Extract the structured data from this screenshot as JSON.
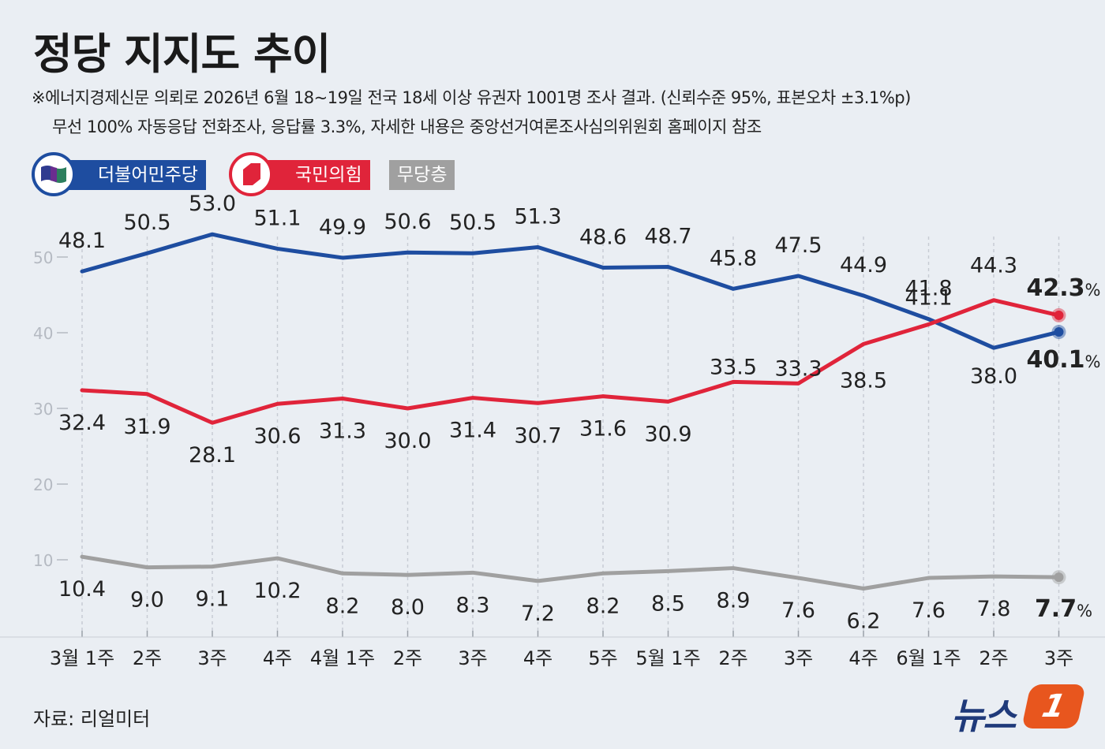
{
  "title": "정당 지지도 추이",
  "notes": [
    "※에너지경제신문 의뢰로 2026년 6월 18~19일 전국 18세 이상 유권자 1001명 조사 결과. (신뢰수준 95%, 표본오차 ±3.1%p)",
    "무선 100% 자동응답 전화조사, 응답률 3.3%, 자세한 내용은 중앙선거여론조사심의위원회 홈페이지 참조"
  ],
  "legend": [
    {
      "name": "더불어민주당",
      "color": "#1e4da0"
    },
    {
      "name": "국민의힘",
      "color": "#e0243a"
    },
    {
      "name": "무당층",
      "color": "#a0a0a0"
    }
  ],
  "source": "자료: 리얼미터",
  "brand": {
    "text": "뉴스",
    "badge": "1"
  },
  "colors": {
    "dem": "#1e4da0",
    "ppp": "#e0243a",
    "none": "#a0a0a0",
    "axis": "#c4c9d1"
  },
  "chart_data": {
    "type": "line",
    "title": "정당 지지도 추이",
    "xlabel": "",
    "ylabel": "",
    "ylim": [
      0,
      55
    ],
    "yticks": [
      10,
      20,
      30,
      40,
      50
    ],
    "grid": "vertical dashed lines",
    "categories": [
      "3월 1주",
      "2주",
      "3주",
      "4주",
      "4월 1주",
      "2주",
      "3주",
      "4주",
      "5주",
      "5월 1주",
      "2주",
      "3주",
      "4주",
      "6월 1주",
      "2주",
      "3주"
    ],
    "series": [
      {
        "name": "더불어민주당",
        "color": "#1e4da0",
        "values": [
          48.1,
          50.5,
          53.0,
          51.1,
          49.9,
          50.6,
          50.5,
          51.3,
          48.6,
          48.7,
          45.8,
          47.5,
          44.9,
          41.8,
          38.0,
          40.1
        ],
        "labels": [
          "48.1",
          "50.5",
          "53.0",
          "51.1",
          "49.9",
          "50.6",
          "50.5",
          "51.3",
          "48.6",
          "48.7",
          "45.8",
          "47.5",
          "44.9",
          "41.8",
          "38.0",
          "40.1"
        ]
      },
      {
        "name": "국민의힘",
        "color": "#e0243a",
        "values": [
          32.4,
          31.9,
          28.1,
          30.6,
          31.3,
          30.0,
          31.4,
          30.7,
          31.6,
          30.9,
          33.5,
          33.3,
          38.5,
          41.1,
          44.3,
          42.3
        ],
        "labels": [
          "32.4",
          "31.9",
          "28.1",
          "30.6",
          "31.3",
          "30.0",
          "31.4",
          "30.7",
          "31.6",
          "30.9",
          "33.5",
          "33.3",
          "38.5",
          "41.1",
          "44.3",
          "42.3"
        ]
      },
      {
        "name": "무당층",
        "color": "#a0a0a0",
        "values": [
          10.4,
          9.0,
          9.1,
          10.2,
          8.2,
          8.0,
          8.3,
          7.2,
          8.2,
          8.5,
          8.9,
          7.6,
          6.2,
          7.6,
          7.8,
          7.7
        ],
        "labels": [
          "10.4",
          "9.0",
          "9.1",
          "10.2",
          "8.2",
          "8.0",
          "8.3",
          "7.2",
          "8.2",
          "8.5",
          "8.9",
          "7.6",
          "6.2",
          "7.6",
          "7.8",
          "7.7"
        ]
      }
    ],
    "unit_suffix": "%"
  }
}
